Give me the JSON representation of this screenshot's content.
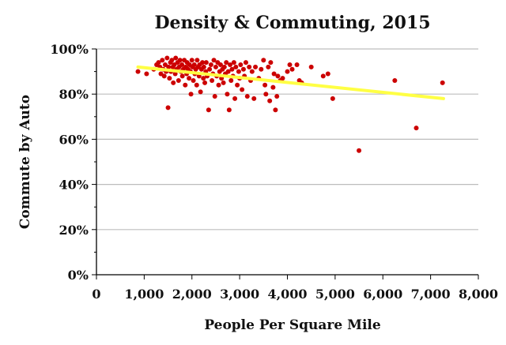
{
  "chart_data": {
    "type": "scatter",
    "title": "Density & Commuting, 2015",
    "xlabel": "People Per Square Mile",
    "ylabel": "Commute by Auto",
    "xlim": [
      0,
      8000
    ],
    "ylim": [
      0,
      1
    ],
    "x_ticks": [
      "0",
      "1,000",
      "2,000",
      "3,000",
      "4,000",
      "5,000",
      "6,000",
      "7,000",
      "8,000"
    ],
    "y_ticks": [
      "0%",
      "20%",
      "40%",
      "60%",
      "80%",
      "100%"
    ],
    "grid": "horizontal",
    "colors": {
      "points": "#cc0000",
      "trendline": "#ffff44",
      "grid": "#bdbdbd",
      "axis": "#000000"
    },
    "trendline": {
      "x": [
        870,
        7270
      ],
      "y": [
        0.92,
        0.78
      ]
    },
    "points": [
      [
        870,
        0.9
      ],
      [
        1050,
        0.89
      ],
      [
        1200,
        0.91
      ],
      [
        1260,
        0.93
      ],
      [
        1300,
        0.94
      ],
      [
        1330,
        0.92
      ],
      [
        1350,
        0.89
      ],
      [
        1380,
        0.95
      ],
      [
        1400,
        0.91
      ],
      [
        1420,
        0.88
      ],
      [
        1440,
        0.93
      ],
      [
        1460,
        0.9
      ],
      [
        1480,
        0.96
      ],
      [
        1500,
        0.74
      ],
      [
        1510,
        0.92
      ],
      [
        1530,
        0.87
      ],
      [
        1550,
        0.94
      ],
      [
        1560,
        0.9
      ],
      [
        1580,
        0.95
      ],
      [
        1600,
        0.92
      ],
      [
        1610,
        0.85
      ],
      [
        1630,
        0.93
      ],
      [
        1650,
        0.89
      ],
      [
        1660,
        0.96
      ],
      [
        1680,
        0.91
      ],
      [
        1700,
        0.94
      ],
      [
        1720,
        0.86
      ],
      [
        1730,
        0.92
      ],
      [
        1750,
        0.95
      ],
      [
        1770,
        0.9
      ],
      [
        1790,
        0.93
      ],
      [
        1800,
        0.88
      ],
      [
        1820,
        0.91
      ],
      [
        1840,
        0.95
      ],
      [
        1860,
        0.84
      ],
      [
        1870,
        0.92
      ],
      [
        1890,
        0.89
      ],
      [
        1900,
        0.94
      ],
      [
        1920,
        0.91
      ],
      [
        1940,
        0.87
      ],
      [
        1950,
        0.93
      ],
      [
        1970,
        0.9
      ],
      [
        1980,
        0.8
      ],
      [
        2000,
        0.95
      ],
      [
        2010,
        0.92
      ],
      [
        2030,
        0.86
      ],
      [
        2050,
        0.93
      ],
      [
        2060,
        0.89
      ],
      [
        2080,
        0.91
      ],
      [
        2100,
        0.84
      ],
      [
        2110,
        0.95
      ],
      [
        2130,
        0.92
      ],
      [
        2150,
        0.88
      ],
      [
        2160,
        0.93
      ],
      [
        2180,
        0.81
      ],
      [
        2200,
        0.91
      ],
      [
        2220,
        0.94
      ],
      [
        2240,
        0.87
      ],
      [
        2250,
        0.92
      ],
      [
        2270,
        0.85
      ],
      [
        2290,
        0.9
      ],
      [
        2300,
        0.94
      ],
      [
        2320,
        0.88
      ],
      [
        2350,
        0.73
      ],
      [
        2370,
        0.91
      ],
      [
        2400,
        0.93
      ],
      [
        2420,
        0.86
      ],
      [
        2440,
        0.89
      ],
      [
        2460,
        0.95
      ],
      [
        2480,
        0.79
      ],
      [
        2500,
        0.92
      ],
      [
        2520,
        0.88
      ],
      [
        2540,
        0.94
      ],
      [
        2560,
        0.84
      ],
      [
        2580,
        0.9
      ],
      [
        2600,
        0.93
      ],
      [
        2620,
        0.87
      ],
      [
        2640,
        0.91
      ],
      [
        2660,
        0.85
      ],
      [
        2680,
        0.92
      ],
      [
        2700,
        0.89
      ],
      [
        2720,
        0.94
      ],
      [
        2740,
        0.8
      ],
      [
        2760,
        0.9
      ],
      [
        2780,
        0.73
      ],
      [
        2800,
        0.93
      ],
      [
        2820,
        0.86
      ],
      [
        2840,
        0.91
      ],
      [
        2860,
        0.88
      ],
      [
        2880,
        0.94
      ],
      [
        2900,
        0.78
      ],
      [
        2920,
        0.92
      ],
      [
        2950,
        0.84
      ],
      [
        2980,
        0.9
      ],
      [
        3000,
        0.87
      ],
      [
        3020,
        0.93
      ],
      [
        3050,
        0.82
      ],
      [
        3080,
        0.91
      ],
      [
        3100,
        0.88
      ],
      [
        3130,
        0.94
      ],
      [
        3160,
        0.79
      ],
      [
        3200,
        0.92
      ],
      [
        3230,
        0.86
      ],
      [
        3260,
        0.9
      ],
      [
        3300,
        0.78
      ],
      [
        3330,
        0.92
      ],
      [
        3400,
        0.87
      ],
      [
        3450,
        0.91
      ],
      [
        3500,
        0.95
      ],
      [
        3530,
        0.84
      ],
      [
        3550,
        0.8
      ],
      [
        3600,
        0.92
      ],
      [
        3630,
        0.77
      ],
      [
        3650,
        0.94
      ],
      [
        3700,
        0.83
      ],
      [
        3720,
        0.89
      ],
      [
        3750,
        0.73
      ],
      [
        3780,
        0.79
      ],
      [
        3800,
        0.88
      ],
      [
        3850,
        0.86
      ],
      [
        3900,
        0.87
      ],
      [
        4000,
        0.9
      ],
      [
        4050,
        0.93
      ],
      [
        4100,
        0.91
      ],
      [
        4200,
        0.93
      ],
      [
        4250,
        0.86
      ],
      [
        4300,
        0.85
      ],
      [
        4500,
        0.92
      ],
      [
        4750,
        0.88
      ],
      [
        4850,
        0.89
      ],
      [
        4950,
        0.78
      ],
      [
        5500,
        0.55
      ],
      [
        6250,
        0.86
      ],
      [
        6700,
        0.65
      ],
      [
        7250,
        0.85
      ]
    ]
  }
}
